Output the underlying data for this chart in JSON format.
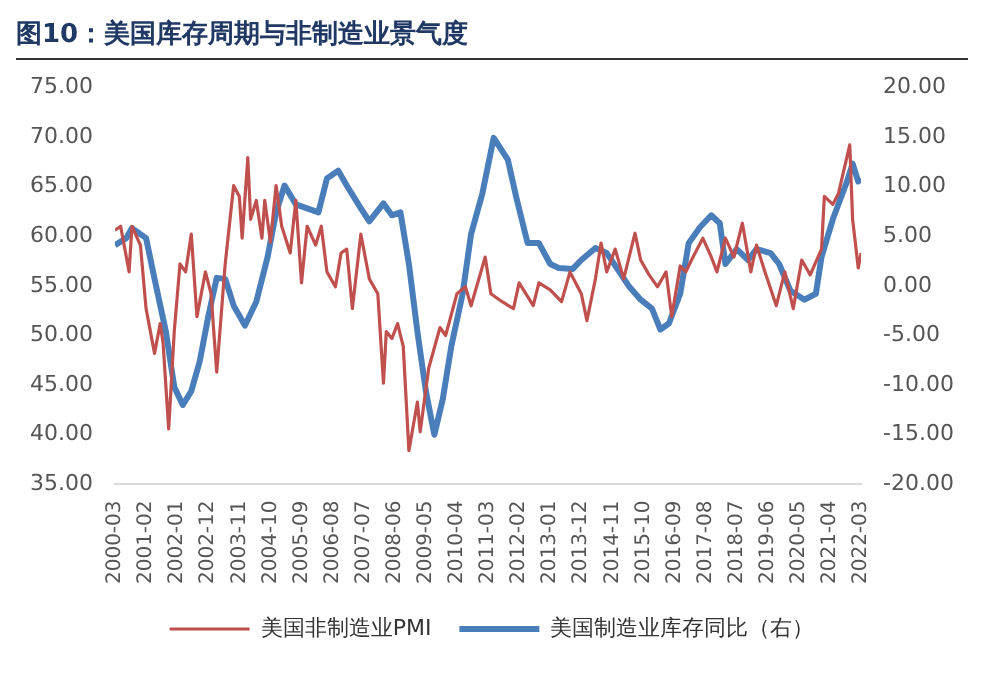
{
  "chart_data": {
    "type": "line",
    "title": "图10：美国库存周期与非制造业景气度",
    "xlim": [
      "2000-03",
      "2022-03"
    ],
    "xticks": [
      "2000-03",
      "2001-02",
      "2002-01",
      "2002-12",
      "2003-11",
      "2004-10",
      "2005-09",
      "2006-08",
      "2007-07",
      "2008-06",
      "2009-05",
      "2010-04",
      "2011-03",
      "2012-02",
      "2013-01",
      "2013-12",
      "2014-11",
      "2015-10",
      "2016-09",
      "2017-08",
      "2018-07",
      "2019-06",
      "2020-05",
      "2021-04",
      "2022-03"
    ],
    "ylim": [
      35,
      75
    ],
    "yticks": [
      {
        "value": 35,
        "label": "35.00"
      },
      {
        "value": 40,
        "label": "40.00"
      },
      {
        "value": 45,
        "label": "45.00"
      },
      {
        "value": 50,
        "label": "50.00"
      },
      {
        "value": 55,
        "label": "55.00"
      },
      {
        "value": 60,
        "label": "60.00"
      },
      {
        "value": 65,
        "label": "65.00"
      },
      {
        "value": 70,
        "label": "70.00"
      },
      {
        "value": 75,
        "label": "75.00"
      }
    ],
    "y2lim": [
      -20,
      20
    ],
    "y2ticks": [
      {
        "value": -20,
        "label": "-20.00"
      },
      {
        "value": -15,
        "label": "-15.00"
      },
      {
        "value": -10,
        "label": "-10.00"
      },
      {
        "value": -5,
        "label": "-5.00"
      },
      {
        "value": 0,
        "label": "0.00"
      },
      {
        "value": 5,
        "label": "5.00"
      },
      {
        "value": 10,
        "label": "10.00"
      },
      {
        "value": 15,
        "label": "15.00"
      },
      {
        "value": 20,
        "label": "20.00"
      }
    ],
    "grid": false,
    "legend": "bottom",
    "marker": "none",
    "line_style": "solid",
    "series": [
      {
        "name": "美国非制造业PMI",
        "color": "#c0504d",
        "x": [
          "2000-03",
          "2000-05",
          "2000-08",
          "2000-09",
          "2000-12",
          "2001-02",
          "2001-05",
          "2001-07",
          "2001-08",
          "2001-10",
          "2001-12",
          "2002-02",
          "2002-04",
          "2002-06",
          "2002-08",
          "2002-11",
          "2003-01",
          "2003-03",
          "2003-06",
          "2003-09",
          "2003-11",
          "2003-12",
          "2004-02",
          "2004-03",
          "2004-05",
          "2004-07",
          "2004-08",
          "2004-10",
          "2004-12",
          "2005-02",
          "2005-05",
          "2005-07",
          "2005-09",
          "2005-11",
          "2006-02",
          "2006-04",
          "2006-06",
          "2006-09",
          "2006-11",
          "2007-01",
          "2007-03",
          "2007-06",
          "2007-09",
          "2007-12",
          "2008-02",
          "2008-03",
          "2008-05",
          "2008-07",
          "2008-09",
          "2008-11",
          "2009-02",
          "2009-03",
          "2009-06",
          "2009-10",
          "2009-12",
          "2010-04",
          "2010-07",
          "2010-09",
          "2011-02",
          "2011-04",
          "2011-08",
          "2011-12",
          "2012-02",
          "2012-07",
          "2012-09",
          "2013-01",
          "2013-05",
          "2013-08",
          "2013-12",
          "2014-02",
          "2014-05",
          "2014-07",
          "2014-09",
          "2014-12",
          "2015-03",
          "2015-07",
          "2015-09",
          "2015-12",
          "2016-03",
          "2016-06",
          "2016-08",
          "2016-11",
          "2017-01",
          "2017-03",
          "2017-07",
          "2017-10",
          "2017-12",
          "2018-03",
          "2018-06",
          "2018-09",
          "2018-12",
          "2019-02",
          "2019-05",
          "2019-09",
          "2019-12",
          "2020-03",
          "2020-06",
          "2020-09",
          "2021-01",
          "2021-02",
          "2021-05",
          "2021-07",
          "2021-11",
          "2021-12",
          "2022-02",
          "2022-03"
        ],
        "values": [
          60.6,
          61,
          56.4,
          61,
          59.1,
          52.7,
          48.2,
          51.2,
          49.3,
          40.6,
          50.5,
          57.2,
          56.4,
          60.2,
          51.9,
          56.4,
          54.2,
          46.3,
          57.2,
          65.1,
          64,
          59.8,
          67.9,
          61.7,
          63.6,
          59.8,
          63.6,
          59.4,
          65.1,
          61,
          58.3,
          63.6,
          55.3,
          61,
          59.1,
          61,
          56.4,
          54.9,
          58.3,
          58.7,
          52.7,
          60.2,
          55.7,
          54.2,
          45.2,
          50.4,
          49.7,
          51.2,
          48.9,
          38.4,
          43.3,
          40.3,
          46.7,
          50.8,
          50,
          54.2,
          54.9,
          53,
          57.9,
          54.2,
          53.4,
          52.7,
          55.3,
          53,
          55.3,
          54.6,
          53.4,
          56.4,
          54.2,
          51.5,
          55.7,
          59.3,
          56.4,
          58.7,
          55.7,
          60.3,
          57.6,
          56.1,
          54.9,
          56.4,
          51.9,
          57,
          56.4,
          57.6,
          59.8,
          57.9,
          56.4,
          59.8,
          57.9,
          61.3,
          56.4,
          59.1,
          56.4,
          53,
          56.4,
          52.7,
          57.6,
          56.1,
          58.7,
          64,
          63.2,
          64.3,
          69.2,
          61.7,
          56.8,
          58.3
        ]
      },
      {
        "name": "美国制造业库存同比（右）",
        "color": "#4a7ebb",
        "axis": "y2",
        "x": [
          "2000-03",
          "2000-07",
          "2000-09",
          "2001-02",
          "2001-05",
          "2001-09",
          "2001-12",
          "2002-03",
          "2002-06",
          "2002-09",
          "2002-12",
          "2003-03",
          "2003-06",
          "2003-09",
          "2004-01",
          "2004-05",
          "2004-09",
          "2004-12",
          "2005-03",
          "2005-07",
          "2005-11",
          "2006-03",
          "2006-06",
          "2006-10",
          "2007-01",
          "2007-06",
          "2007-09",
          "2008-02",
          "2008-05",
          "2008-08",
          "2008-11",
          "2009-02",
          "2009-05",
          "2009-08",
          "2009-11",
          "2010-02",
          "2010-06",
          "2010-09",
          "2011-01",
          "2011-05",
          "2011-10",
          "2012-01",
          "2012-05",
          "2012-09",
          "2013-01",
          "2013-04",
          "2013-09",
          "2013-12",
          "2014-05",
          "2014-09",
          "2015-01",
          "2015-05",
          "2015-09",
          "2016-01",
          "2016-04",
          "2016-07",
          "2016-11",
          "2017-02",
          "2017-06",
          "2017-10",
          "2018-01",
          "2018-03",
          "2018-07",
          "2018-11",
          "2019-02",
          "2019-07",
          "2019-10",
          "2020-02",
          "2020-07",
          "2020-11",
          "2021-01",
          "2021-05",
          "2021-10",
          "2021-12",
          "2022-02",
          "2022-03"
        ],
        "values": [
          4.1,
          4.8,
          5.8,
          4.8,
          0.7,
          -4.6,
          -10.2,
          -12,
          -10.6,
          -7.6,
          -3.1,
          0.8,
          0.7,
          -2,
          -4,
          -1.6,
          2.9,
          7.4,
          10.1,
          8.2,
          7.8,
          7.4,
          10.8,
          11.6,
          10.1,
          7.8,
          6.5,
          8.3,
          7.1,
          7.4,
          2.2,
          -4.6,
          -10.6,
          -15,
          -11.4,
          -6.1,
          -0.8,
          5.2,
          9.3,
          14.9,
          12.7,
          8.9,
          4.3,
          4.3,
          2.2,
          1.8,
          1.7,
          2.6,
          3.8,
          3.3,
          1.6,
          -0.1,
          -1.4,
          -2.3,
          -4.4,
          -3.8,
          -0.8,
          4.3,
          5.9,
          7.1,
          6.3,
          2.2,
          3.7,
          2.6,
          3.7,
          3.3,
          2.2,
          -0.5,
          -1.4,
          -0.8,
          2.9,
          6.7,
          10.5,
          12.3,
          10.5,
          10.8
        ]
      }
    ]
  }
}
